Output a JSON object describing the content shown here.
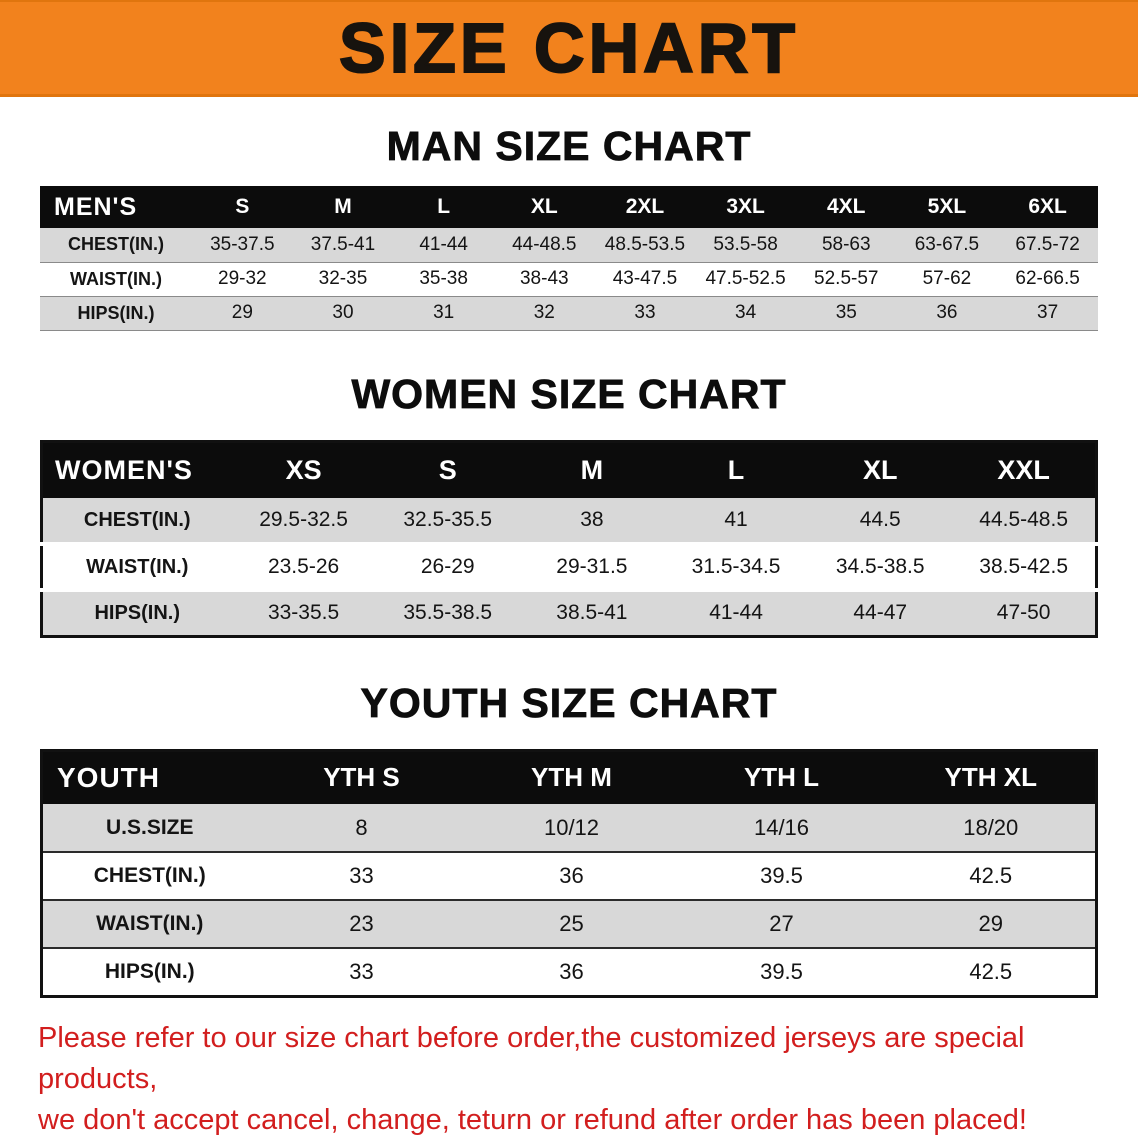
{
  "banner": {
    "title": "SIZE CHART",
    "bg_color": "#f2821d",
    "text_color": "#17130e"
  },
  "chart_data": [
    {
      "type": "table",
      "title": "MAN SIZE CHART",
      "header": [
        "MEN'S",
        "S",
        "M",
        "L",
        "XL",
        "2XL",
        "3XL",
        "4XL",
        "5XL",
        "6XL"
      ],
      "rows": [
        [
          "CHEST(IN.)",
          "35-37.5",
          "37.5-41",
          "41-44",
          "44-48.5",
          "48.5-53.5",
          "53.5-58",
          "58-63",
          "63-67.5",
          "67.5-72"
        ],
        [
          "WAIST(IN.)",
          "29-32",
          "32-35",
          "35-38",
          "38-43",
          "43-47.5",
          "47.5-52.5",
          "52.5-57",
          "57-62",
          "62-66.5"
        ],
        [
          "HIPS(IN.)",
          "29",
          "30",
          "31",
          "32",
          "33",
          "34",
          "35",
          "36",
          "37"
        ]
      ]
    },
    {
      "type": "table",
      "title": "WOMEN SIZE CHART",
      "header": [
        "WOMEN'S",
        "XS",
        "S",
        "M",
        "L",
        "XL",
        "XXL"
      ],
      "rows": [
        [
          "CHEST(IN.)",
          "29.5-32.5",
          "32.5-35.5",
          "38",
          "41",
          "44.5",
          "44.5-48.5"
        ],
        [
          "WAIST(IN.)",
          "23.5-26",
          "26-29",
          "29-31.5",
          "31.5-34.5",
          "34.5-38.5",
          "38.5-42.5"
        ],
        [
          "HIPS(IN.)",
          "33-35.5",
          "35.5-38.5",
          "38.5-41",
          "41-44",
          "44-47",
          "47-50"
        ]
      ]
    },
    {
      "type": "table",
      "title": "YOUTH SIZE CHART",
      "header": [
        "YOUTH",
        "YTH S",
        "YTH M",
        "YTH L",
        "YTH XL"
      ],
      "rows": [
        [
          "U.S.SIZE",
          "8",
          "10/12",
          "14/16",
          "18/20"
        ],
        [
          "CHEST(IN.)",
          "33",
          "36",
          "39.5",
          "42.5"
        ],
        [
          "WAIST(IN.)",
          "23",
          "25",
          "27",
          "29"
        ],
        [
          "HIPS(IN.)",
          "33",
          "36",
          "39.5",
          "42.5"
        ]
      ]
    }
  ],
  "footer": {
    "line1": "Please refer to our size chart before order,the customized jerseys are special products,",
    "line2": "we don't accept cancel, change, teturn or refund after order has been placed!",
    "text_color": "#d21e1e"
  },
  "table_style": {
    "header_bg": "#0c0c0c",
    "header_text_color": "#ffffff",
    "alt_row_bg": "#d8d8d8"
  }
}
